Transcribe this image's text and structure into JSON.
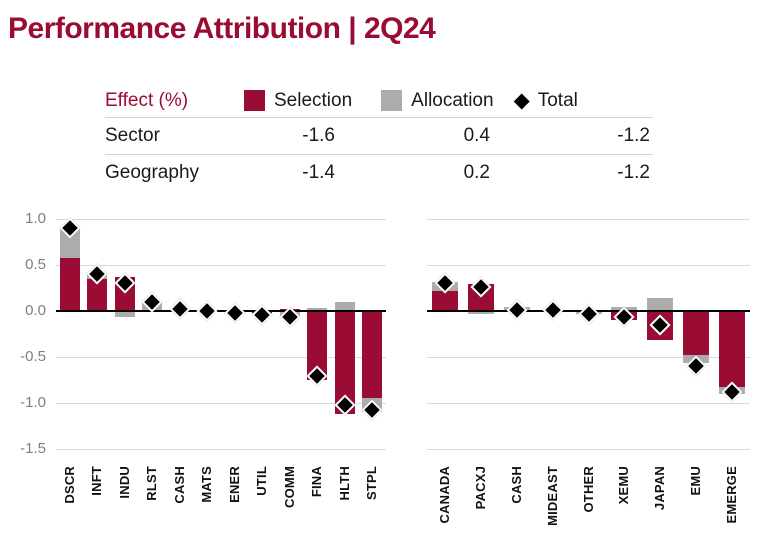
{
  "title": "Performance Attribution | 2Q24",
  "colors": {
    "accent": "#990D32",
    "selection_bar": "#9B0C35",
    "allocation_bar": "#ACACAC",
    "total_marker": "#000000",
    "gridline": "#d9d9d9",
    "axis_text": "#7f7f7f"
  },
  "table": {
    "header_label": "Effect (%)",
    "legend": [
      {
        "label": "Selection",
        "swatch": "square",
        "color": "#9B0C35"
      },
      {
        "label": "Allocation",
        "swatch": "square",
        "color": "#ACACAC"
      },
      {
        "label": "Total",
        "swatch": "diamond",
        "color": "#000000"
      }
    ],
    "rows": [
      {
        "label": "Sector",
        "selection": "-1.6",
        "allocation": "0.4",
        "total": "-1.2"
      },
      {
        "label": "Geography",
        "selection": "-1.4",
        "allocation": "0.2",
        "total": "-1.2"
      }
    ]
  },
  "chart_data": [
    {
      "type": "bar",
      "name": "Sector attribution",
      "categories": [
        "DSCR",
        "INFT",
        "INDU",
        "RLST",
        "CASH",
        "MATS",
        "ENER",
        "UTIL",
        "COMM",
        "FINA",
        "HLTH",
        "STPL"
      ],
      "series": [
        {
          "name": "Selection",
          "type": "bar",
          "values": [
            0.58,
            0.35,
            0.37,
            0.0,
            0.02,
            0.01,
            -0.01,
            -0.02,
            0.02,
            -0.75,
            -1.12,
            -0.95
          ]
        },
        {
          "name": "Allocation",
          "type": "bar",
          "values": [
            0.32,
            0.05,
            -0.07,
            0.1,
            0.0,
            0.0,
            -0.01,
            -0.02,
            -0.08,
            0.03,
            0.1,
            -0.15
          ]
        },
        {
          "name": "Total",
          "type": "scatter-diamond",
          "values": [
            0.9,
            0.4,
            0.3,
            0.1,
            0.02,
            0.0,
            -0.02,
            -0.04,
            -0.06,
            -0.71,
            -1.02,
            -1.08
          ]
        }
      ],
      "ylabel": "",
      "xlabel": "",
      "ylim": [
        -1.5,
        1.0
      ],
      "yticks": [
        1.0,
        0.5,
        0.0,
        -0.5,
        -1.0,
        -1.5
      ],
      "grid": true,
      "stacked": true,
      "legend_position": "table-header"
    },
    {
      "type": "bar",
      "name": "Geography attribution",
      "categories": [
        "CANADA",
        "PACXJ",
        "CASH",
        "MIDEAST",
        "OTHER",
        "XEMU",
        "JAPAN",
        "EMU",
        "EMERGE"
      ],
      "series": [
        {
          "name": "Selection",
          "type": "bar",
          "values": [
            0.22,
            0.29,
            0.0,
            0.01,
            0.0,
            -0.1,
            -0.31,
            -0.48,
            -0.83
          ]
        },
        {
          "name": "Allocation",
          "type": "bar",
          "values": [
            0.1,
            -0.03,
            0.04,
            0.0,
            -0.03,
            0.04,
            0.14,
            -0.09,
            -0.07
          ]
        },
        {
          "name": "Total",
          "type": "scatter-diamond",
          "values": [
            0.31,
            0.26,
            0.01,
            0.01,
            -0.03,
            -0.06,
            -0.15,
            -0.6,
            -0.88
          ]
        }
      ],
      "ylabel": "",
      "xlabel": "",
      "ylim": [
        -1.5,
        1.0
      ],
      "yticks": [
        1.0,
        0.5,
        0.0,
        -0.5,
        -1.0,
        -1.5
      ],
      "grid": true,
      "stacked": true,
      "legend_position": "table-header"
    }
  ]
}
